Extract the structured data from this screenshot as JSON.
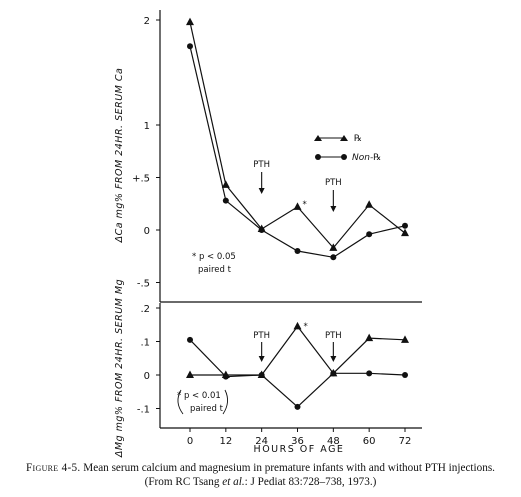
{
  "chart_data": [
    {
      "type": "line",
      "x": [
        0,
        12,
        24,
        36,
        48,
        60,
        72
      ],
      "xlabel": "HOURS OF AGE",
      "ylabel": "ΔCa mg% FROM 24HR. SERUM Ca",
      "ylim": [
        -0.6,
        2.0
      ],
      "y_ticks": [
        "2",
        "1",
        "+.5",
        "0",
        "-.5"
      ],
      "y_tick_values": [
        2,
        1,
        0.5,
        0,
        -0.5
      ],
      "series": [
        {
          "name": "℞",
          "marker": "triangle",
          "values": [
            1.98,
            0.43,
            0.01,
            0.22,
            -0.17,
            0.24,
            -0.03
          ]
        },
        {
          "name": "Non-℞",
          "marker": "circle",
          "values": [
            1.75,
            0.28,
            0.0,
            -0.2,
            -0.26,
            -0.04,
            0.04
          ]
        }
      ],
      "annotations": {
        "pth_labels": [
          "PTH",
          "PTH"
        ],
        "star": "*",
        "significance": [
          "* p < 0.05",
          "paired t"
        ]
      }
    },
    {
      "type": "line",
      "x": [
        0,
        12,
        24,
        36,
        48,
        60,
        72
      ],
      "x_ticks": [
        "0",
        "12",
        "24",
        "36",
        "48",
        "60",
        "72"
      ],
      "xlabel": "HOURS OF AGE",
      "ylabel": "ΔMg mg% FROM 24HR. SERUM Mg",
      "ylim": [
        -0.15,
        0.2
      ],
      "y_ticks": [
        ".2",
        ".1",
        "0",
        "-.1"
      ],
      "y_tick_values": [
        0.2,
        0.1,
        0,
        -0.1
      ],
      "series": [
        {
          "name": "℞",
          "marker": "triangle",
          "values": [
            0.0,
            0.0,
            0.0,
            0.145,
            0.005,
            0.11,
            0.105
          ]
        },
        {
          "name": "Non-℞",
          "marker": "circle",
          "values": [
            0.105,
            -0.005,
            0.0,
            -0.095,
            0.005,
            0.005,
            0.0
          ]
        }
      ],
      "annotations": {
        "pth_labels": [
          "PTH",
          "PTH"
        ],
        "star": "*",
        "significance": [
          "* p < 0.01",
          "paired t"
        ]
      }
    }
  ],
  "caption": {
    "label": "Figure 4-5.",
    "text": "Mean serum calcium and magnesium in premature infants with and without PTH injections.",
    "source_prefix": "(From RC Tsang ",
    "source_etal": "et al.",
    "source_suffix": ": J Pediat 83:728–738, 1973.)"
  }
}
